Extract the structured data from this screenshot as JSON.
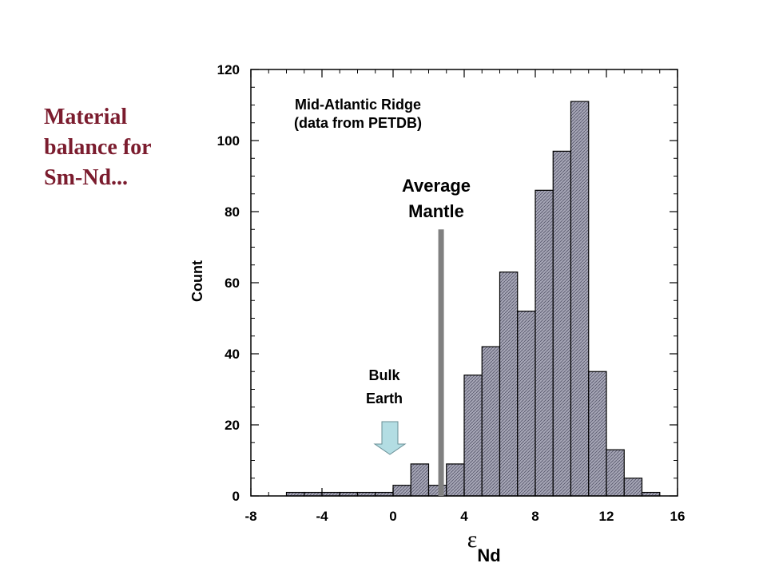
{
  "slide": {
    "title_lines": [
      "Material",
      "balance for",
      "Sm-Nd..."
    ]
  },
  "chart_data": {
    "type": "bar",
    "title_lines": [
      "Mid-Atlantic Ridge",
      "(data from PETDB)"
    ],
    "ylabel": "Count",
    "xlabel_symbol": "ε",
    "xlabel_subscript": "Nd",
    "xlim": [
      -8,
      16
    ],
    "ylim": [
      0,
      120
    ],
    "xticks": [
      -8,
      -4,
      0,
      4,
      8,
      12,
      16
    ],
    "yticks": [
      0,
      20,
      40,
      60,
      80,
      100,
      120
    ],
    "grid": false,
    "bin_width": 1,
    "bins": [
      {
        "x0": -6,
        "count": 1
      },
      {
        "x0": -5,
        "count": 1
      },
      {
        "x0": -4,
        "count": 1
      },
      {
        "x0": -3,
        "count": 1
      },
      {
        "x0": -2,
        "count": 1
      },
      {
        "x0": -1,
        "count": 1
      },
      {
        "x0": 0,
        "count": 3
      },
      {
        "x0": 1,
        "count": 9
      },
      {
        "x0": 2,
        "count": 3
      },
      {
        "x0": 3,
        "count": 9
      },
      {
        "x0": 4,
        "count": 34
      },
      {
        "x0": 5,
        "count": 42
      },
      {
        "x0": 6,
        "count": 63
      },
      {
        "x0": 7,
        "count": 52
      },
      {
        "x0": 8,
        "count": 86
      },
      {
        "x0": 9,
        "count": 97
      },
      {
        "x0": 10,
        "count": 111
      },
      {
        "x0": 11,
        "count": 35
      },
      {
        "x0": 12,
        "count": 13
      },
      {
        "x0": 13,
        "count": 5
      },
      {
        "x0": 14,
        "count": 1
      }
    ],
    "bar_fill": "#a6a6b6",
    "annotations": {
      "average_mantle": {
        "lines": [
          "Average",
          "Mantle"
        ],
        "x": 2.7,
        "y_top": 75,
        "color": "#808080"
      },
      "bulk_earth": {
        "lines": [
          "Bulk",
          "Earth"
        ],
        "x": 0,
        "color": "#b3dde3"
      }
    }
  }
}
